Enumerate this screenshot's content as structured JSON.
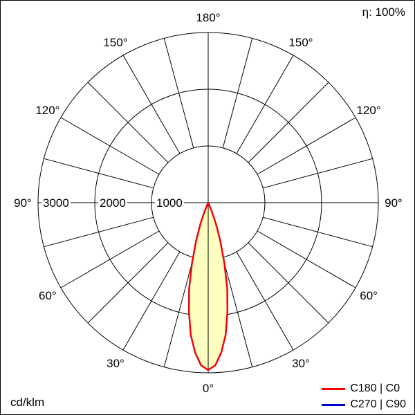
{
  "chart_data": {
    "type": "line",
    "variant": "polar-luminous-intensity-distribution",
    "unit": "cd/klm",
    "efficiency": "η: 100%",
    "rings": [
      1000,
      2000,
      3000
    ],
    "ring_label_order": [
      "3000",
      "2000",
      "1000"
    ],
    "angle_step_deg": 15,
    "angle_tick_labels": [
      "0°",
      "30°",
      "60°",
      "90°",
      "120°",
      "150°",
      "180°"
    ],
    "grid_color": "#000000",
    "legend_position": "bottom-right",
    "series": [
      {
        "name": "C180 | C0",
        "color": "#ff0000",
        "fill": "#ffffc2",
        "angles_deg": [
          -25,
          -22.5,
          -20,
          -17.5,
          -15,
          -12.5,
          -10,
          -7.5,
          -5,
          -2.5,
          0,
          2.5,
          5,
          7.5,
          10,
          12.5,
          15,
          17.5,
          20,
          22.5,
          25
        ],
        "values": [
          0,
          150,
          400,
          700,
          1100,
          1550,
          1950,
          2350,
          2650,
          2870,
          2950,
          2870,
          2650,
          2350,
          1950,
          1550,
          1100,
          700,
          400,
          150,
          0
        ]
      },
      {
        "name": "C270 | C90",
        "color": "#0000cd",
        "fill": "none",
        "angles_deg": [
          -25,
          -22.5,
          -20,
          -17.5,
          -15,
          -12.5,
          -10,
          -7.5,
          -5,
          -2.5,
          0,
          2.5,
          5,
          7.5,
          10,
          12.5,
          15,
          17.5,
          20,
          22.5,
          25
        ],
        "values": [
          0,
          150,
          400,
          700,
          1100,
          1550,
          1950,
          2350,
          2650,
          2870,
          2950,
          2870,
          2650,
          2350,
          1950,
          1550,
          1100,
          700,
          400,
          150,
          0
        ]
      }
    ]
  }
}
